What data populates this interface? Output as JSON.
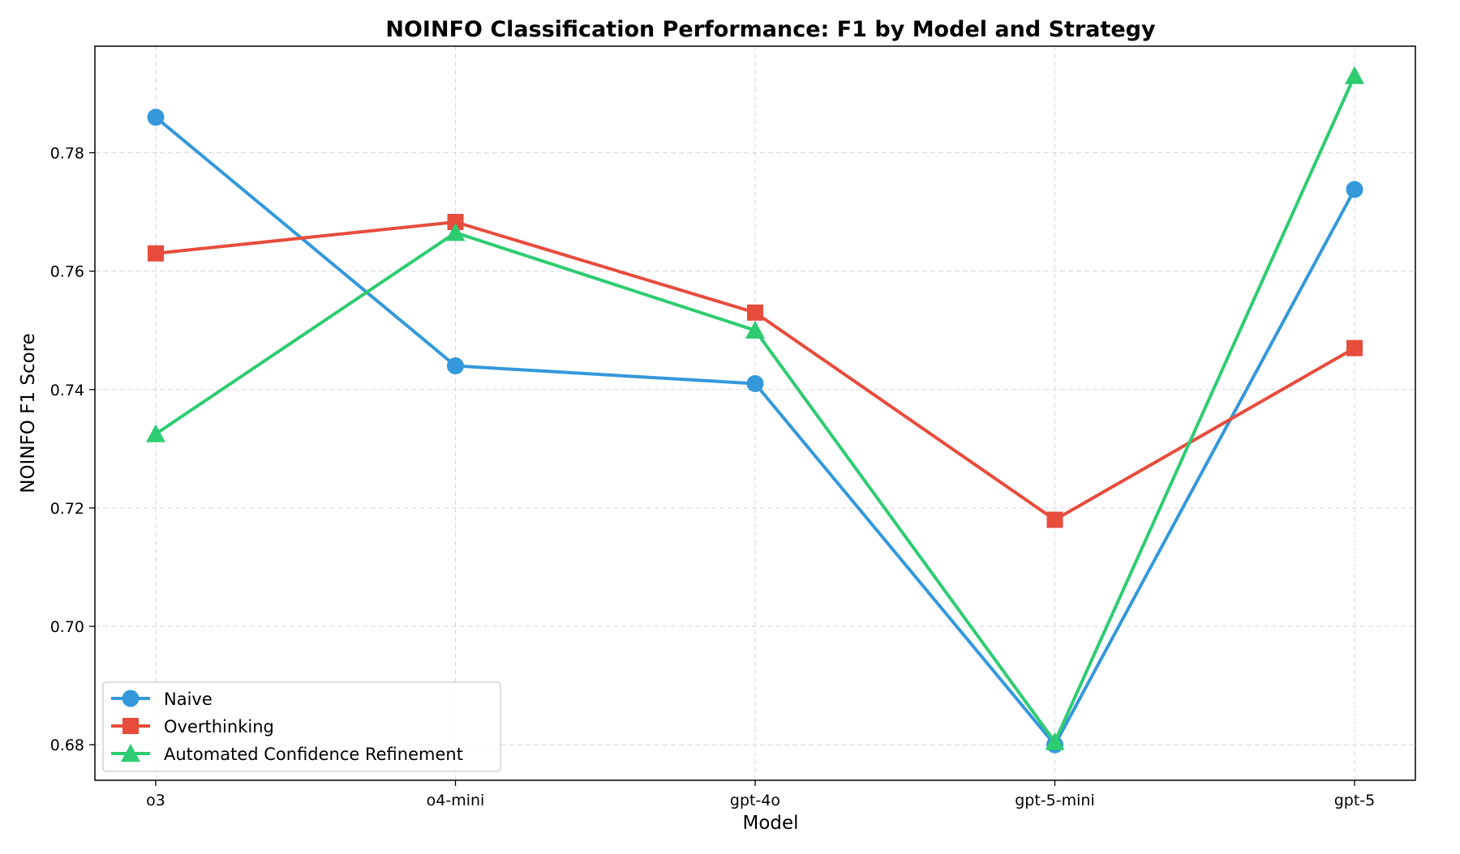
{
  "chart_data": {
    "type": "line",
    "title": "NOINFO Classification Performance: F1 by Model and Strategy",
    "xlabel": "Model",
    "ylabel": "NOINFO F1 Score",
    "categories": [
      "o3",
      "o4-mini",
      "gpt-4o",
      "gpt-5-mini",
      "gpt-5"
    ],
    "ylim": [
      0.674,
      0.798
    ],
    "yticks": [
      0.68,
      0.7,
      0.72,
      0.74,
      0.76,
      0.78
    ],
    "ytick_labels": [
      "0.68",
      "0.70",
      "0.72",
      "0.74",
      "0.76",
      "0.78"
    ],
    "grid": true,
    "legend_position": "lower-left",
    "series": [
      {
        "name": "Naive",
        "color": "#3498db",
        "marker": "circle",
        "values": [
          0.786,
          0.744,
          0.741,
          0.68,
          0.7738
        ]
      },
      {
        "name": "Overthinking",
        "color": "#e74c3c",
        "marker": "square",
        "values": [
          0.763,
          0.7683,
          0.753,
          0.718,
          0.747
        ]
      },
      {
        "name": "Automated Confidence Refinement",
        "color": "#2ecc71",
        "marker": "triangle",
        "values": [
          0.7325,
          0.7665,
          0.75,
          0.6805,
          0.793
        ]
      }
    ]
  }
}
